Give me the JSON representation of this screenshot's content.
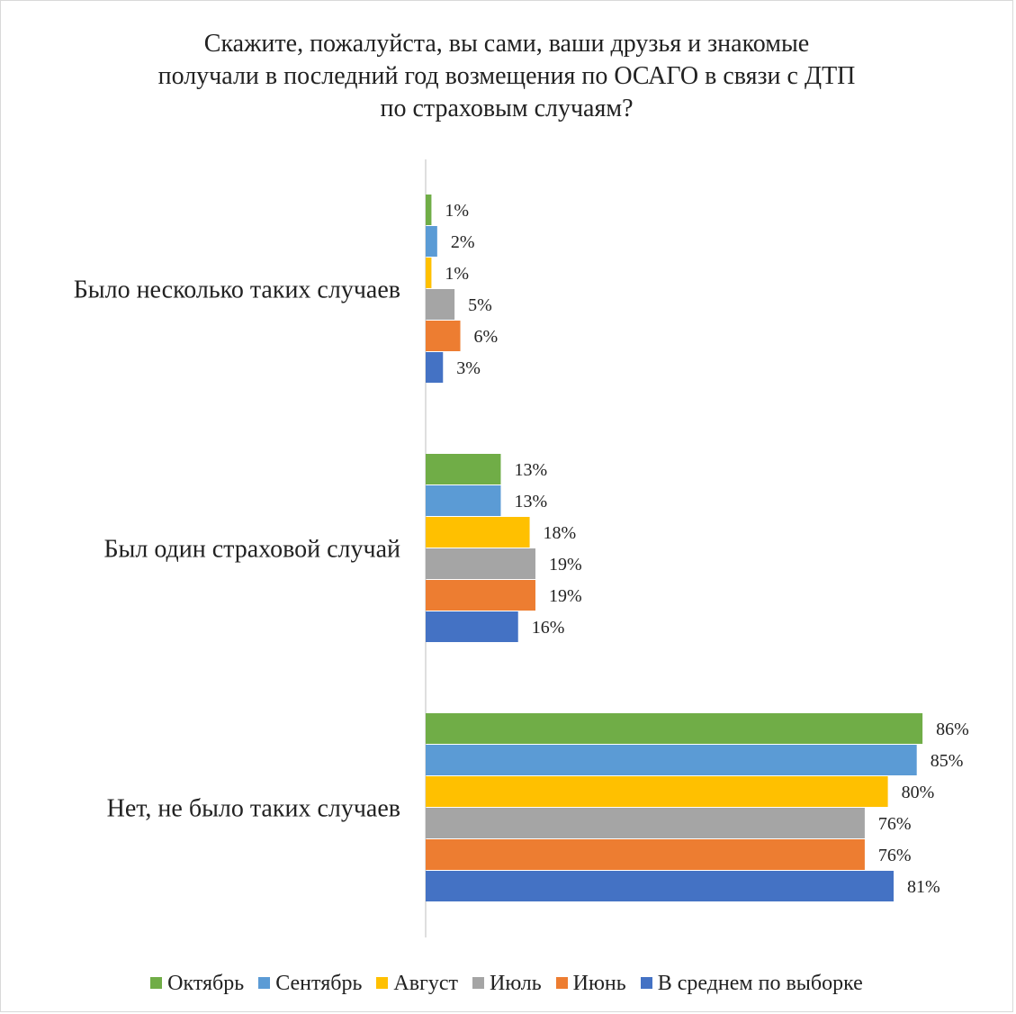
{
  "chart_data": {
    "type": "bar",
    "orientation": "horizontal",
    "title_lines": [
      "Скажите, пожалуйста, вы сами, ваши друзья и знакомые",
      "получали в последний год возмещения по ОСАГО в связи с ДТП",
      "по страховым случаям?"
    ],
    "categories": [
      "Было несколько таких случаев",
      "Был один страховой случай",
      "Нет, не было таких случаев"
    ],
    "series": [
      {
        "name": "Октябрь",
        "color": "#70ad47",
        "values": [
          1,
          13,
          86
        ],
        "labels": [
          "1%",
          "13%",
          "86%"
        ]
      },
      {
        "name": "Сентябрь",
        "color": "#5b9bd5",
        "values": [
          2,
          13,
          85
        ],
        "labels": [
          "2%",
          "13%",
          "85%"
        ]
      },
      {
        "name": "Август",
        "color": "#ffc000",
        "values": [
          1,
          18,
          80
        ],
        "labels": [
          "1%",
          "18%",
          "80%"
        ]
      },
      {
        "name": "Июль",
        "color": "#a5a5a5",
        "values": [
          5,
          19,
          76
        ],
        "labels": [
          "5%",
          "19%",
          "76%"
        ]
      },
      {
        "name": "Июнь",
        "color": "#ed7d31",
        "values": [
          6,
          19,
          76
        ],
        "labels": [
          "6%",
          "19%",
          "76%"
        ]
      },
      {
        "name": "В среднем по выборке",
        "color": "#4472c4",
        "values": [
          3,
          16,
          81
        ],
        "labels": [
          "3%",
          "16%",
          "81%"
        ]
      }
    ],
    "xlim": [
      0,
      100
    ],
    "grid": false,
    "legend_position": "bottom"
  }
}
